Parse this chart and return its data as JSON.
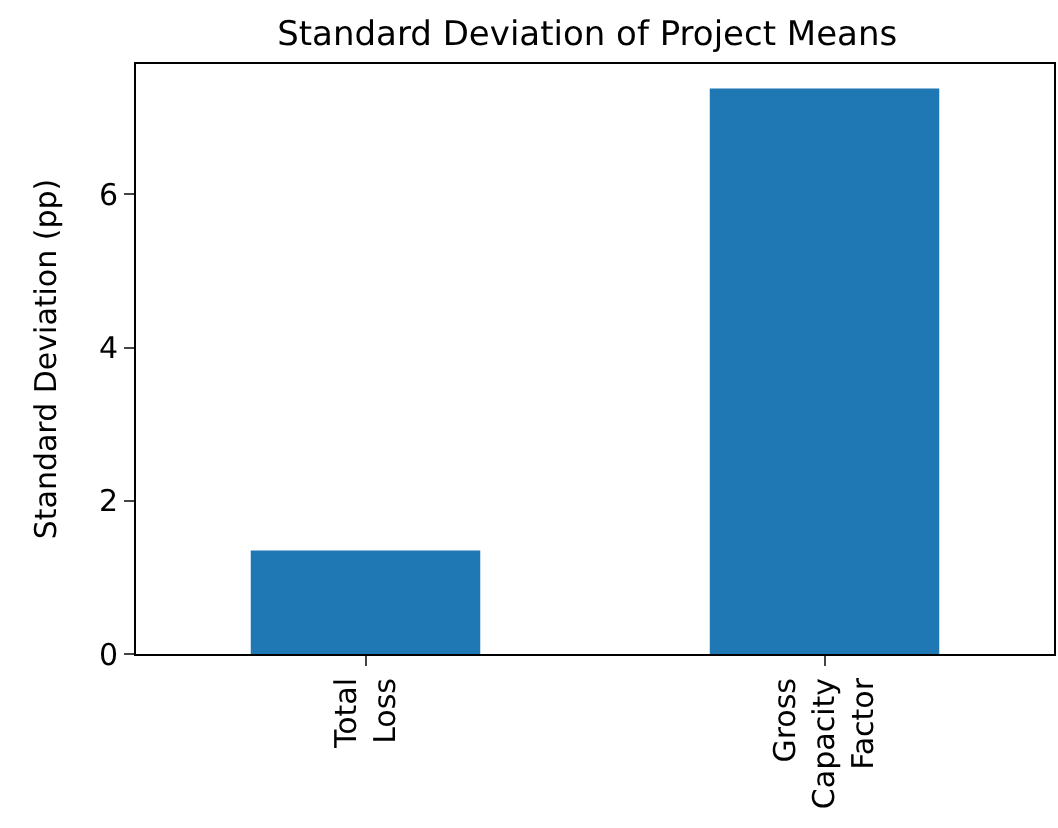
{
  "chart_data": {
    "type": "bar",
    "title": "Standard Deviation of Project Means",
    "ylabel": "Standard Deviation (pp)",
    "categories": [
      "Total\nLoss",
      "Gross\nCapacity\nFactor"
    ],
    "values": [
      1.35,
      7.38
    ],
    "color": "#1f77b4",
    "ylim": [
      0,
      7.7
    ],
    "yticks": [
      0,
      2,
      4,
      6
    ],
    "grid": false
  }
}
